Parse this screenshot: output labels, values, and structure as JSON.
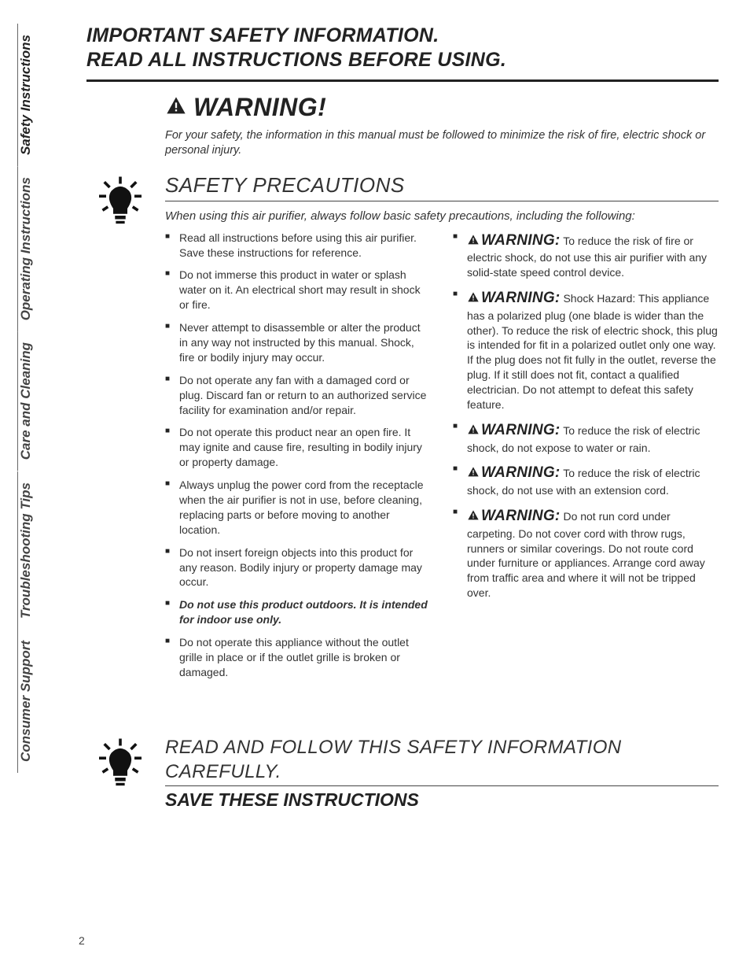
{
  "colors": {
    "text": "#333333",
    "heading": "#222222",
    "rule": "#222222",
    "background": "#ffffff",
    "tab_divider": "#666666"
  },
  "typography": {
    "body_fontsize_pt": 10.5,
    "heading_fontsize_pt": 19,
    "warning_head_fontsize_pt": 24,
    "section_heading_fontsize_pt": 20,
    "italic_intro_fontsize_pt": 11,
    "tab_fontsize_pt": 13
  },
  "page_number": "2",
  "side_tabs": [
    "Safety Instructions",
    "Operating Instructions",
    "Care and Cleaning",
    "Troubleshooting Tips",
    "Consumer Support"
  ],
  "title": {
    "line1": "IMPORTANT SAFETY INFORMATION.",
    "line2": "READ ALL INSTRUCTIONS BEFORE USING."
  },
  "warning_head": "WARNING!",
  "intro": "For your safety, the information in this manual must be followed to minimize the risk of fire, electric shock or personal injury.",
  "precautions": {
    "heading": "SAFETY PRECAUTIONS",
    "sub": "When using this air purifier, always follow basic safety precautions, including the following:",
    "left": [
      {
        "text": "Read all instructions before using this air purifier. Save these instructions for reference."
      },
      {
        "text": "Do not immerse this product in water or splash water on it. An electrical short may result in shock or fire."
      },
      {
        "text": "Never attempt to disassemble or alter the product in any way not instructed by this manual. Shock, fire or bodily injury may occur."
      },
      {
        "text": "Do not operate any fan with a damaged cord or plug. Discard fan or return to an authorized service facility for examination and/or repair."
      },
      {
        "text": "Do not operate this product near an open fire. It may ignite and cause fire, resulting in bodily injury or property damage."
      },
      {
        "text": "Always unplug the power cord from the receptacle when the air purifier is not in use, before cleaning, replacing parts or before moving to another location."
      },
      {
        "text": "Do not insert foreign objects into this product for any reason. Bodily injury or property damage may occur."
      },
      {
        "text": "Do not use this product outdoors. It is intended for indoor use only.",
        "emph": true
      },
      {
        "text": "Do not operate this appliance without the outlet grille in place or if the outlet grille is broken or damaged."
      }
    ],
    "right": [
      {
        "label": "WARNING:",
        "text": " To reduce the risk of fire or electric shock, do not use this air purifier with any solid-state speed control device."
      },
      {
        "label": "WARNING:",
        "text": " Shock Hazard: This appliance has a polarized plug (one blade is wider than the other). To reduce the risk of electric shock, this plug is intended for fit in a polarized outlet only one way. If the plug does not fit fully in the outlet, reverse the plug. If it still does not fit, contact a qualified electrician. Do not attempt to defeat this safety feature."
      },
      {
        "label": "WARNING:",
        "text": " To reduce the risk of electric shock, do not expose to water or rain."
      },
      {
        "label": "WARNING:",
        "text": " To reduce the risk of electric shock, do not use with an extension cord."
      },
      {
        "label": "WARNING:",
        "text": " Do not run cord under carpeting. Do not cover cord with throw rugs, runners or similar coverings. Do not route cord under furniture or appliances. Arrange cord away from traffic area and where it will not be tripped over."
      }
    ]
  },
  "footer": {
    "line1": "READ AND FOLLOW THIS SAFETY INFORMATION CAREFULLY.",
    "line2": "SAVE THESE INSTRUCTIONS"
  }
}
